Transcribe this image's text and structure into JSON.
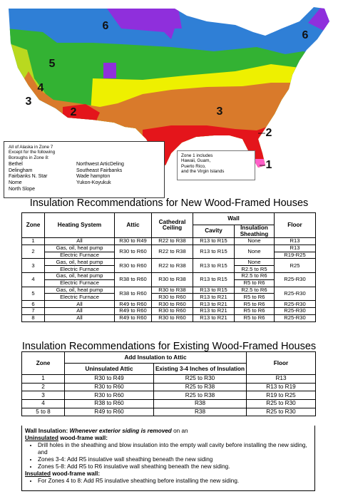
{
  "map": {
    "zone_labels": [
      "6",
      "6",
      "5",
      "4",
      "3",
      "2",
      "3",
      "2",
      "1"
    ],
    "alaska_note": {
      "lines": [
        "All of Alaska in Zone 7",
        "Except for the following",
        "Boroughs in Zone 8:"
      ],
      "boroughs_left": [
        "Bethel",
        "Delingham",
        "Fairbanks N. Star",
        "Nome",
        "North Slope"
      ],
      "boroughs_right": [
        "Northwest ArticDeling",
        "Southeast Fairbanks",
        "Wade hampton",
        "Yukon-Koyukuk"
      ]
    },
    "zone1_note": [
      "Zone 1 includes",
      "Hawaii, Guam,",
      "Puerto Rico,",
      "and the Virgin Islands"
    ]
  },
  "new_houses": {
    "title": "Insulation Recommendations for New Wood-Framed Houses",
    "headers": {
      "zone": "Zone",
      "heating": "Heating System",
      "attic": "Attic",
      "cathedral": "Cathedral Ceiling",
      "wall": "Wall",
      "cavity": "Cavity",
      "sheathing": "Insulation Sheathing",
      "floor": "Floor"
    },
    "rows": [
      {
        "zone": "1",
        "heating": [
          "All"
        ],
        "attic": [
          "R30 to R49"
        ],
        "cathedral": [
          "R22 to R38"
        ],
        "cavity": [
          "R13 to R15"
        ],
        "sheathing": [
          "None"
        ],
        "floor": [
          "R13"
        ]
      },
      {
        "zone": "2",
        "heating": [
          "Gas, oil, heat pump",
          "Electric Furnace"
        ],
        "attic": [
          "R30 to R60"
        ],
        "cathedral": [
          "R22 to R38"
        ],
        "cavity": [
          "R13 to R15"
        ],
        "sheathing": [
          "None"
        ],
        "floor": [
          "R13",
          "R19-R25"
        ]
      },
      {
        "zone": "3",
        "heating": [
          "Gas, oil, heat pump",
          "Electric Furnace"
        ],
        "attic": [
          "R30 to R60"
        ],
        "cathedral": [
          "R22 to R38"
        ],
        "cavity": [
          "R13 to R15"
        ],
        "sheathing": [
          "None",
          "R2.5 to R5"
        ],
        "floor": [
          "R25"
        ]
      },
      {
        "zone": "4",
        "heating": [
          "Gas, oil, heat pump",
          "Electric Furnace"
        ],
        "attic": [
          "R38 to R60"
        ],
        "cathedral": [
          "R30 to R38"
        ],
        "cavity": [
          "R13 to R15"
        ],
        "sheathing": [
          "R2.5 to R6",
          "R5 to R6"
        ],
        "floor": [
          "R25-R30"
        ]
      },
      {
        "zone": "5",
        "heating": [
          "Gas, oil, heat pump",
          "Electric Furnace"
        ],
        "attic": [
          "R38 to R60"
        ],
        "cathedral": [
          "R30 to R38",
          "R30 to R60"
        ],
        "cavity": [
          "R13 to R15",
          "R13 to R21"
        ],
        "sheathing": [
          "R2.5 to R6",
          "R5 to R6"
        ],
        "floor": [
          "R25-R30"
        ]
      },
      {
        "zone": "6",
        "heating": [
          "All"
        ],
        "attic": [
          "R49 to R60"
        ],
        "cathedral": [
          "R30 to R60"
        ],
        "cavity": [
          "R13 to R21"
        ],
        "sheathing": [
          "R5 to R6"
        ],
        "floor": [
          "R25-R30"
        ]
      },
      {
        "zone": "7",
        "heating": [
          "All"
        ],
        "attic": [
          "R49 to R60"
        ],
        "cathedral": [
          "R30 to R60"
        ],
        "cavity": [
          "R13 to R21"
        ],
        "sheathing": [
          "R5 to R6"
        ],
        "floor": [
          "R25-R30"
        ]
      },
      {
        "zone": "8",
        "heating": [
          "All"
        ],
        "attic": [
          "R49 to R60"
        ],
        "cathedral": [
          "R30 to R60"
        ],
        "cavity": [
          "R13 to R21"
        ],
        "sheathing": [
          "R5 to R6"
        ],
        "floor": [
          "R25-R30"
        ]
      }
    ]
  },
  "existing_houses": {
    "title": "Insulation Recommendations for Existing Wood-Framed Houses",
    "headers": {
      "zone": "Zone",
      "attic": "Add Insulation to Attic",
      "uninsulated": "Uninsulated Attic",
      "existing": "Existing 3-4 Inches of Insulation",
      "floor": "Floor"
    },
    "rows": [
      {
        "zone": "1",
        "uninsulated": "R30 to R49",
        "existing": "R25 to R30",
        "floor": "R13"
      },
      {
        "zone": "2",
        "uninsulated": "R30 to R60",
        "existing": "R25 to R38",
        "floor": "R13 to R19"
      },
      {
        "zone": "3",
        "uninsulated": "R30 to R60",
        "existing": "R25 to R38",
        "floor": "R19 to R25"
      },
      {
        "zone": "4",
        "uninsulated": "R38 to R60",
        "existing": "R38",
        "floor": "R25 to R30"
      },
      {
        "zone": "5 to 8",
        "uninsulated": "R49 to R60",
        "existing": "R38",
        "floor": "R25 to R30"
      }
    ]
  },
  "wall_note": {
    "heading": "Wall Insulation:",
    "heading_condition": "Whenever exterior siding is removed",
    "heading_end": "on an",
    "uninsulated": {
      "label": "Uninsulated",
      "rest": "wood-frame wall:",
      "bullets": [
        "Drill holes in the sheathing and blow insulation into the empty wall cavity before installing the new siding, and",
        "Zones 3-4: Add R5 insulative wall sheathing beneath the new siding",
        "Zones 5-8: Add R5 to R6 insulative wall sheathing beneath the new siding."
      ]
    },
    "insulated": {
      "label": "Insulated",
      "rest": "wood-frame wall:",
      "bullets": [
        "For Zones 4 to 8: Add R5 insulative sheathing before installing the new siding."
      ]
    }
  }
}
